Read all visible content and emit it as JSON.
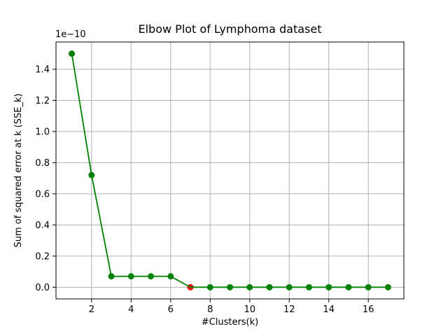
{
  "chart_data": {
    "type": "line",
    "title": "Elbow Plot of Lymphoma dataset",
    "xlabel": "#Clusters(k)",
    "ylabel": "Sum of squared error at k (SSE_k)",
    "y_offset_label": "1e−10",
    "x": [
      1,
      2,
      3,
      4,
      5,
      6,
      7,
      8,
      9,
      10,
      11,
      12,
      13,
      14,
      15,
      16,
      17
    ],
    "y": [
      1.5,
      0.72,
      0.07,
      0.07,
      0.07,
      0.07,
      0.0,
      0.0,
      0.0,
      0.0,
      0.0,
      0.0,
      0.0,
      0.0,
      0.0,
      0.0,
      0.0
    ],
    "elbow_x": 7,
    "xtick_values": [
      2,
      4,
      6,
      8,
      10,
      12,
      14,
      16
    ],
    "xtick_labels": [
      "2",
      "4",
      "6",
      "8",
      "10",
      "12",
      "14",
      "16"
    ],
    "ytick_values": [
      0.0,
      0.2,
      0.4,
      0.6,
      0.8,
      1.0,
      1.2,
      1.4
    ],
    "ytick_labels": [
      "0.0",
      "0.2",
      "0.4",
      "0.6",
      "0.8",
      "1.0",
      "1.2",
      "1.4"
    ],
    "xlim": [
      0.2,
      17.8
    ],
    "ylim": [
      -0.075,
      1.575
    ],
    "grid": true,
    "legend": null,
    "colors": {
      "line": "#008000",
      "marker": "#008000",
      "elbow_marker": "#ff0000",
      "grid": "#b0b0b0",
      "spine": "#000000",
      "text": "#000000",
      "background": "#ffffff"
    }
  }
}
